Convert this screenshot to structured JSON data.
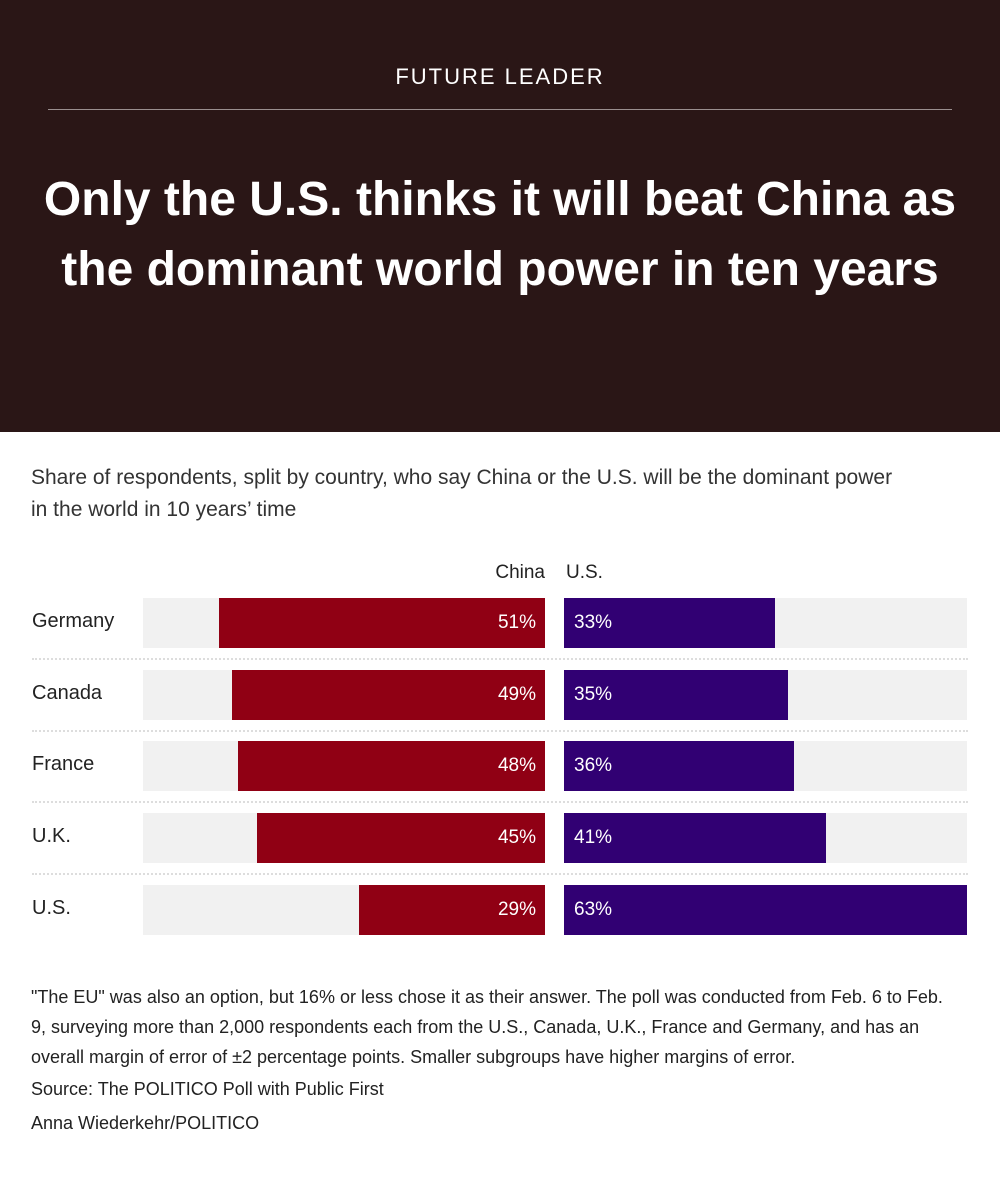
{
  "header": {
    "kicker": "FUTURE LEADER",
    "title": "Only the U.S. thinks it will beat China as the dominant world power in ten years"
  },
  "subtitle": "Share of respondents, split by country, who say China or the U.S. will be the dominant power in the world in 10 years’ time",
  "chart_data": {
    "type": "bar",
    "categories": [
      "Germany",
      "Canada",
      "France",
      "U.K.",
      "U.S."
    ],
    "series": [
      {
        "name": "China",
        "values": [
          51,
          49,
          48,
          45,
          29
        ],
        "color": "#900014"
      },
      {
        "name": "U.S.",
        "values": [
          33,
          35,
          36,
          41,
          63
        ],
        "color": "#310073"
      }
    ],
    "value_suffix": "%",
    "xlim": [
      0,
      63
    ]
  },
  "notes": "\"The EU\" was also an option, but 16% or less chose it as their answer. The poll was conducted from Feb. 6 to Feb. 9, surveying more than 2,000 respondents each from the U.S., Canada, U.K., France and Germany, and has an overall margin of error of ±2 percentage points. Smaller subgroups have higher margins of error.",
  "source": "Source: The POLITICO Poll with Public First",
  "credit": "Anna Wiederkehr/POLITICO"
}
